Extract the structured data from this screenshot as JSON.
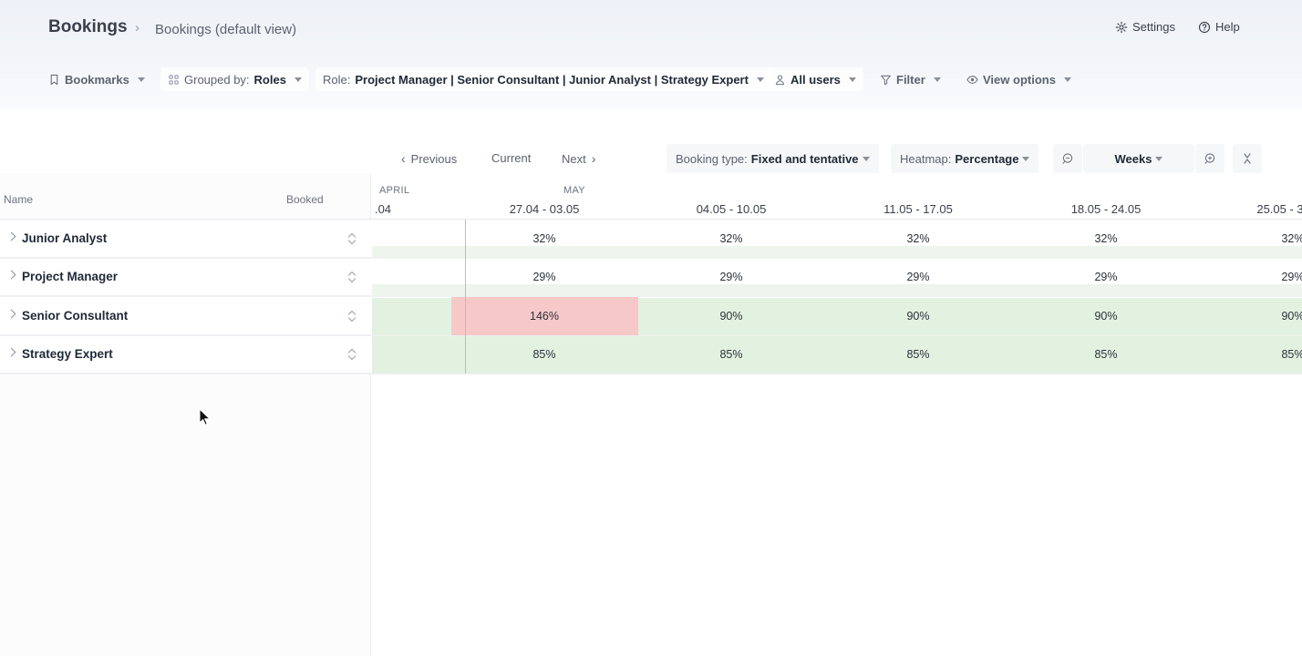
{
  "header": {
    "title": "Bookings",
    "breadcrumb_sep": "›",
    "view_name": "Bookings (default view)",
    "settings_label": "Settings",
    "help_label": "Help"
  },
  "toolbar": {
    "bookmarks": "Bookmarks",
    "grouped_prefix": "Grouped by:",
    "grouped_value": "Roles",
    "role_prefix": "Role:",
    "role_value": "Project Manager | Senior Consultant | Junior Analyst | Strategy Expert",
    "users": "All users",
    "filter": "Filter",
    "view_options": "View options"
  },
  "timeline_nav": {
    "previous": "Previous",
    "current": "Current",
    "next": "Next",
    "booking_type_prefix": "Booking type:",
    "booking_type_value": "Fixed and tentative",
    "heatmap_prefix": "Heatmap:",
    "heatmap_value": "Percentage",
    "scale": "Weeks"
  },
  "table": {
    "name_header": "Name",
    "booked_header": "Booked",
    "months": [
      "APRIL",
      "MAY"
    ],
    "weeks": [
      ".04",
      "27.04 - 03.05",
      "04.05 - 10.05",
      "11.05 - 17.05",
      "18.05 - 24.05",
      "25.05 - 3"
    ],
    "rows": [
      {
        "name": "Junior Analyst",
        "values": [
          "32%",
          "32%",
          "32%",
          "32%",
          "32%"
        ],
        "tone": "light"
      },
      {
        "name": "Project Manager",
        "values": [
          "29%",
          "29%",
          "29%",
          "29%",
          "29%"
        ],
        "tone": "light"
      },
      {
        "name": "Senior Consultant",
        "values": [
          "146%",
          "90%",
          "90%",
          "90%",
          "90%"
        ],
        "tone": "strong"
      },
      {
        "name": "Strategy Expert",
        "values": [
          "85%",
          "85%",
          "85%",
          "85%",
          "85%"
        ],
        "tone": "strong"
      }
    ]
  },
  "colors": {
    "heat_light": "#edf5ec",
    "heat_strong": "#e3f1e1",
    "over_booked": "#f6c8c8"
  }
}
